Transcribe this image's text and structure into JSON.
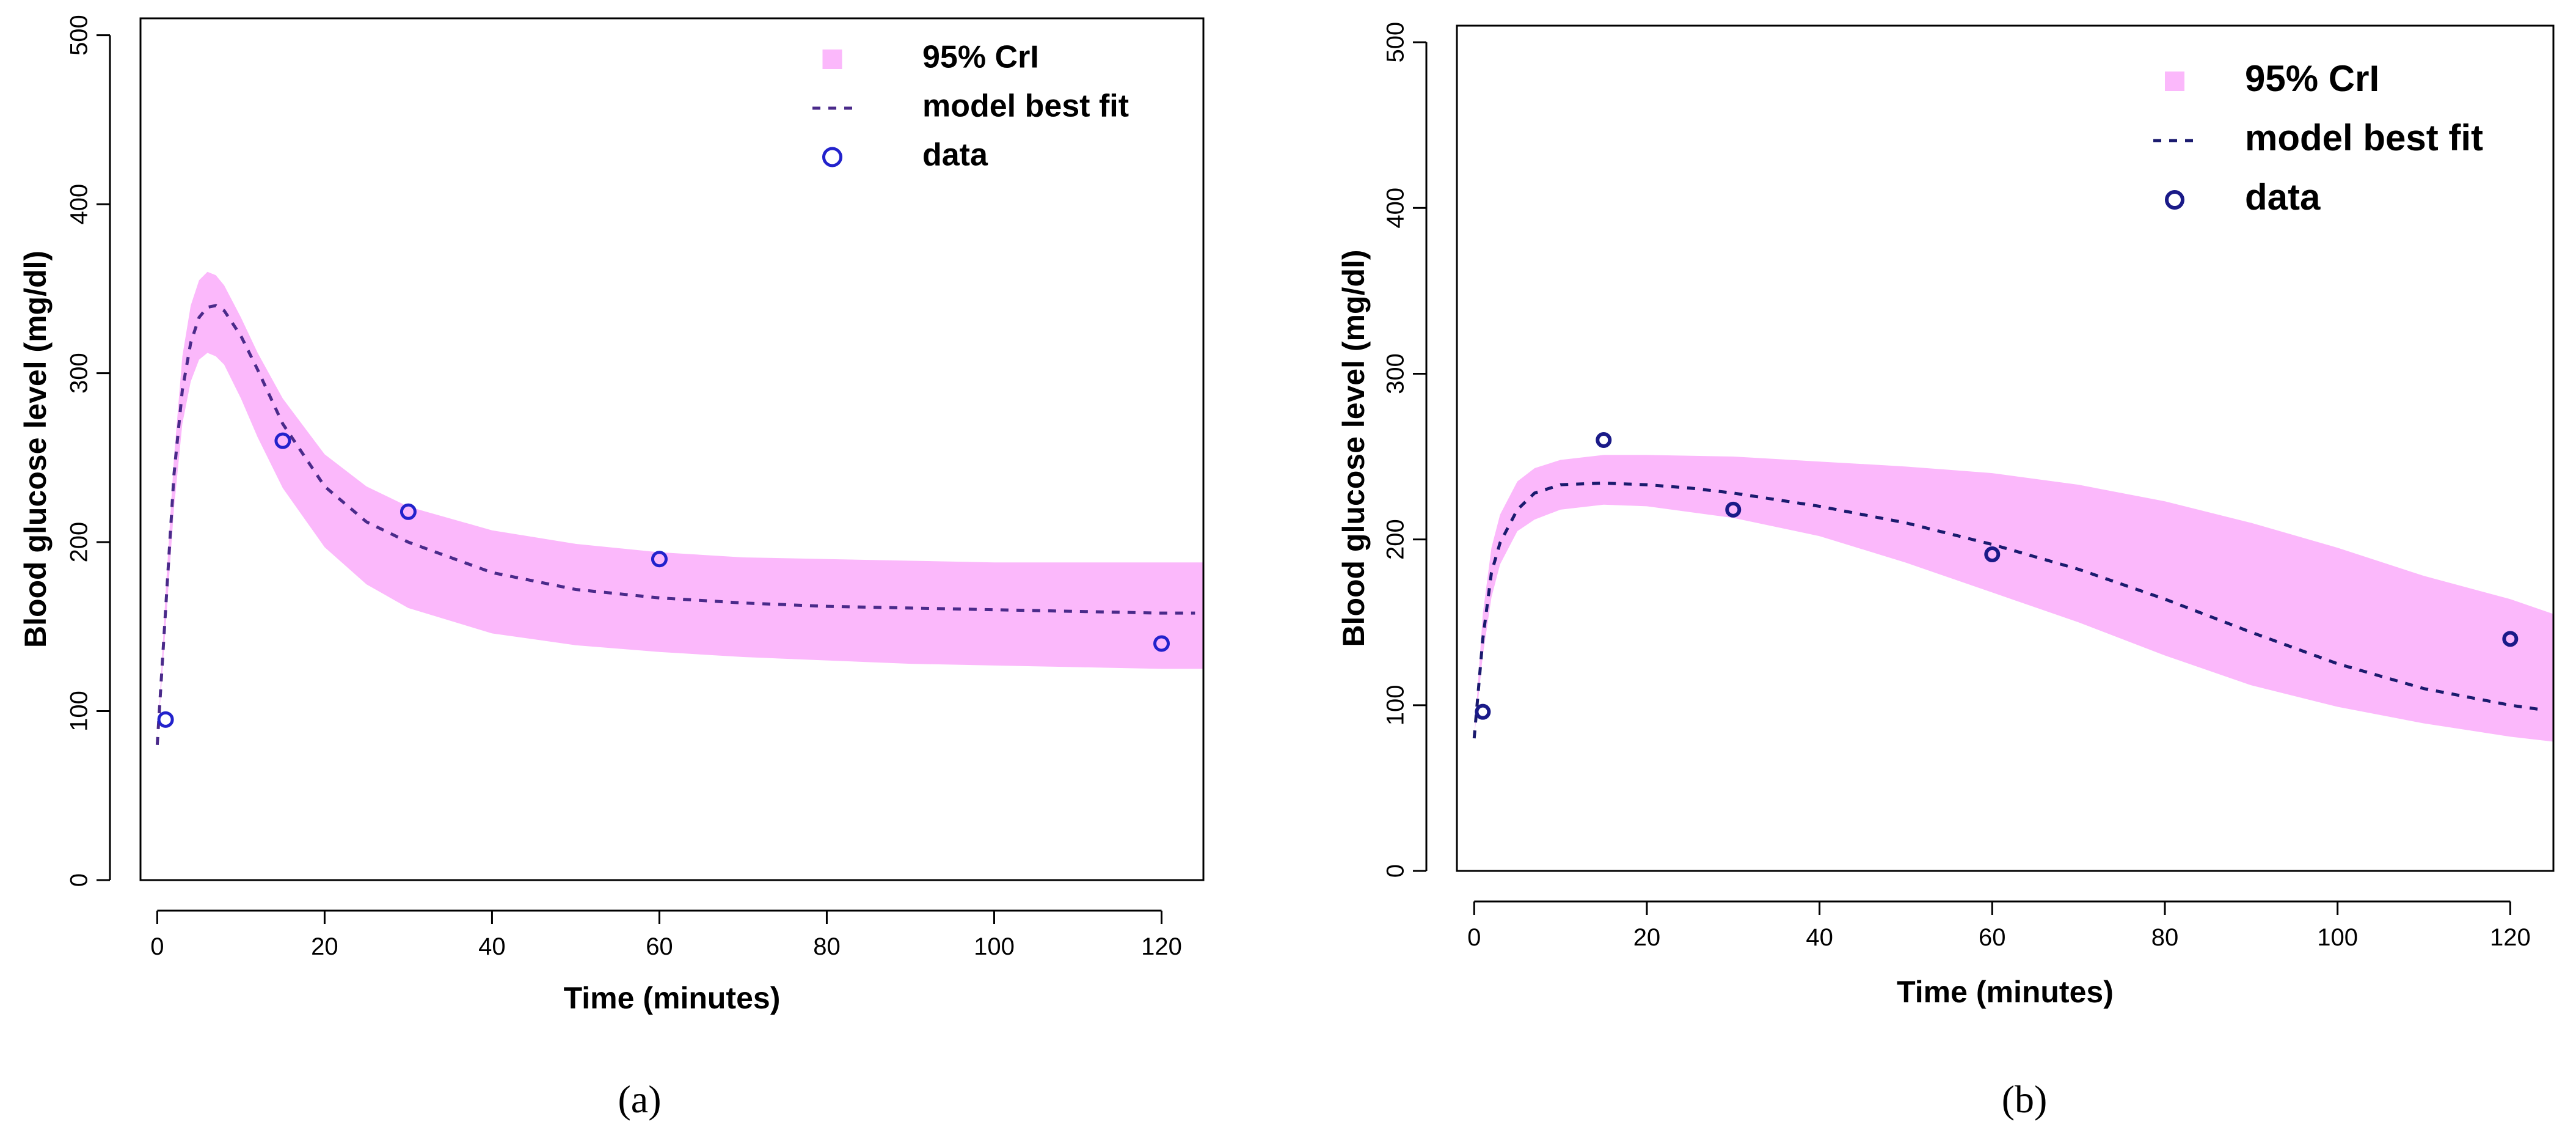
{
  "figure": {
    "captions": [
      "(a)",
      "(b)"
    ]
  },
  "chart_data": [
    {
      "type": "line",
      "panel_label": "a",
      "title": "",
      "xlabel": "Time (minutes)",
      "ylabel": "Blood glucose level (mg/dl)",
      "xlim": [
        -2,
        125
      ],
      "ylim": [
        0,
        510
      ],
      "xticks": [
        0,
        20,
        40,
        60,
        80,
        100,
        120
      ],
      "yticks": [
        0,
        100,
        200,
        300,
        400,
        500
      ],
      "legend": {
        "position": "top-right",
        "entries": [
          "95% CrI",
          "model best fit",
          "data"
        ]
      },
      "colors": {
        "band": "#fbb8fb",
        "line": "#4a2a8a",
        "points": "#2222cc"
      },
      "series": [
        {
          "name": "95% CrI",
          "kind": "band",
          "x": [
            0,
            1,
            2,
            3,
            4,
            5,
            6,
            7,
            8,
            10,
            12,
            15,
            20,
            25,
            30,
            40,
            50,
            60,
            70,
            80,
            90,
            100,
            110,
            120,
            125
          ],
          "lower": [
            80,
            150,
            220,
            270,
            295,
            308,
            312,
            310,
            305,
            285,
            262,
            232,
            197,
            175,
            161,
            146,
            139,
            135,
            132,
            130,
            128,
            127,
            126,
            125,
            125
          ],
          "upper": [
            80,
            170,
            250,
            310,
            340,
            355,
            360,
            358,
            352,
            333,
            312,
            285,
            252,
            233,
            221,
            207,
            199,
            194,
            191,
            190,
            189,
            188,
            188,
            188,
            188
          ]
        },
        {
          "name": "model best fit",
          "kind": "line",
          "x": [
            0,
            1,
            2,
            3,
            4,
            5,
            6,
            7,
            8,
            10,
            12,
            15,
            20,
            25,
            30,
            40,
            50,
            60,
            70,
            80,
            90,
            100,
            110,
            120,
            124
          ],
          "y": [
            80,
            160,
            240,
            290,
            318,
            333,
            339,
            340,
            337,
            322,
            302,
            270,
            233,
            212,
            200,
            182,
            172,
            167,
            164,
            162,
            161,
            160,
            159,
            158,
            158
          ]
        },
        {
          "name": "data",
          "kind": "points",
          "x": [
            1,
            15,
            30,
            60,
            120
          ],
          "y": [
            95,
            260,
            218,
            190,
            140
          ]
        }
      ]
    },
    {
      "type": "line",
      "panel_label": "b",
      "title": "",
      "xlabel": "Time (minutes)",
      "ylabel": "Blood glucose level (mg/dl)",
      "xlim": [
        -2,
        125
      ],
      "ylim": [
        0,
        510
      ],
      "xticks": [
        0,
        20,
        40,
        60,
        80,
        100,
        120
      ],
      "yticks": [
        0,
        100,
        200,
        300,
        400,
        500
      ],
      "legend": {
        "position": "top-right",
        "entries": [
          "95% CrI",
          "model best fit",
          "data"
        ]
      },
      "colors": {
        "band": "#fbb8fb",
        "line": "#1a1a6e",
        "points": "#1a1a88"
      },
      "series": [
        {
          "name": "95% CrI",
          "kind": "band",
          "x": [
            0,
            1,
            2,
            3,
            5,
            7,
            10,
            15,
            20,
            30,
            40,
            50,
            60,
            70,
            80,
            90,
            100,
            110,
            120,
            125
          ],
          "lower": [
            80,
            130,
            165,
            185,
            205,
            212,
            218,
            221,
            220,
            213,
            202,
            186,
            168,
            150,
            130,
            112,
            99,
            89,
            81,
            78
          ],
          "upper": [
            80,
            155,
            195,
            215,
            235,
            243,
            248,
            251,
            251,
            250,
            247,
            244,
            240,
            233,
            223,
            210,
            195,
            178,
            164,
            155
          ]
        },
        {
          "name": "model best fit",
          "kind": "line",
          "x": [
            0,
            1,
            2,
            3,
            5,
            7,
            10,
            15,
            20,
            25,
            30,
            40,
            50,
            60,
            70,
            80,
            90,
            100,
            110,
            120,
            124
          ],
          "y": [
            80,
            140,
            180,
            198,
            218,
            228,
            233,
            234,
            233,
            231,
            228,
            220,
            210,
            197,
            182,
            164,
            144,
            125,
            110,
            100,
            97
          ]
        },
        {
          "name": "data",
          "kind": "points",
          "x": [
            1,
            15,
            30,
            60,
            120
          ],
          "y": [
            96,
            260,
            218,
            191,
            140
          ]
        }
      ]
    }
  ]
}
